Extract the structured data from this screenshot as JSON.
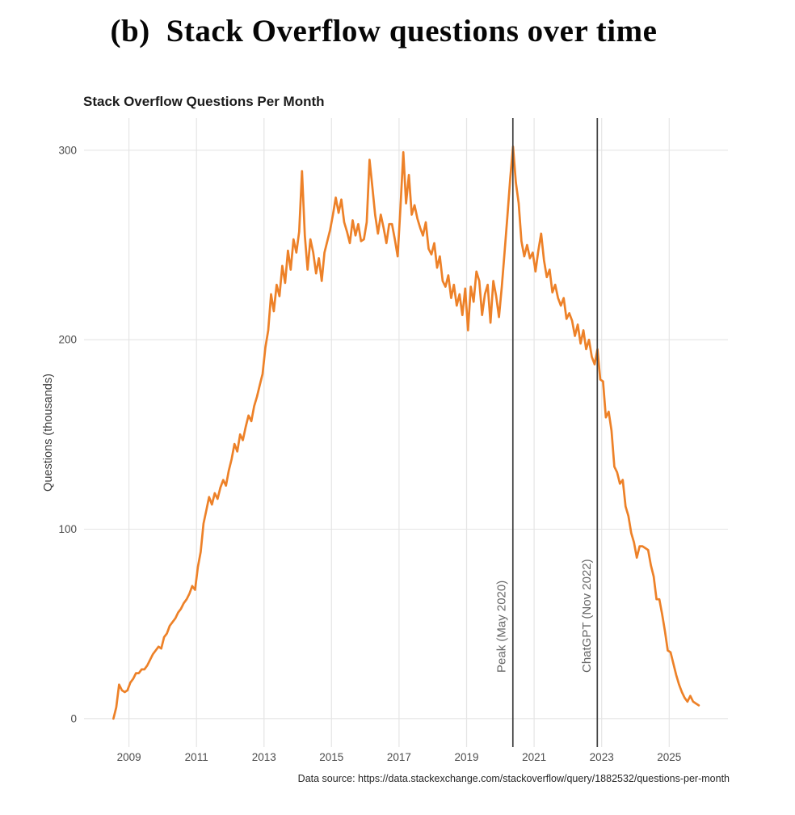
{
  "figure": {
    "title": "(b) Stack Overflow questions over time"
  },
  "chart": {
    "title": "Stack Overflow Questions Per Month",
    "y_axis_title": "Questions (thousands)",
    "caption": "Data source: https://data.stackexchange.com/stackoverflow/query/1882532/questions-per-month"
  },
  "chart_data": {
    "type": "line",
    "title": "Stack Overflow Questions Per Month",
    "xlabel": "",
    "ylabel": "Questions (thousands)",
    "caption": "Data source: https://data.stackexchange.com/stackoverflow/query/1882532/questions-per-month",
    "x_unit": "year",
    "frequency": "monthly",
    "x_start": 2008.5417,
    "x_ticks": [
      2009,
      2011,
      2013,
      2015,
      2017,
      2019,
      2021,
      2023,
      2025
    ],
    "y_ticks": [
      0,
      100,
      200,
      300
    ],
    "xlim": [
      2007.67,
      2026.74
    ],
    "ylim": [
      -15,
      317
    ],
    "grid": true,
    "legend": false,
    "line_color": "#ED8128",
    "grid_color": "#e5e5e5",
    "annotation_line_color": "#3f3f3f",
    "annotations": [
      {
        "label": "Peak (May 2020)",
        "x": 2020.37
      },
      {
        "label": "ChatGPT (Nov 2022)",
        "x": 2022.87
      }
    ],
    "series": [
      {
        "name": "Questions per month (thousands)",
        "values": [
          0,
          6,
          18,
          15,
          14,
          15,
          19,
          21,
          24,
          24,
          26,
          26,
          28,
          31,
          34,
          36,
          38,
          37,
          43,
          45,
          49,
          51,
          53,
          56,
          58,
          61,
          63,
          66,
          70,
          68,
          80,
          88,
          103,
          110,
          117,
          113,
          119,
          116,
          122,
          126,
          123,
          131,
          137,
          145,
          141,
          150,
          147,
          154,
          160,
          157,
          165,
          170,
          176,
          182,
          196,
          205,
          224,
          215,
          229,
          223,
          239,
          230,
          247,
          237,
          253,
          246,
          257,
          289,
          255,
          237,
          253,
          246,
          235,
          243,
          231,
          246,
          252,
          258,
          266,
          275,
          267,
          274,
          262,
          257,
          251,
          263,
          255,
          261,
          252,
          253,
          262,
          295,
          281,
          266,
          256,
          266,
          259,
          251,
          261,
          261,
          253,
          244,
          270,
          299,
          272,
          287,
          266,
          271,
          264,
          259,
          255,
          262,
          248,
          245,
          251,
          238,
          244,
          231,
          228,
          234,
          222,
          229,
          218,
          224,
          213,
          227,
          205,
          228,
          220,
          236,
          231,
          213,
          224,
          229,
          209,
          231,
          223,
          212,
          228,
          246,
          265,
          285,
          302,
          283,
          272,
          252,
          244,
          250,
          243,
          246,
          236,
          247,
          256,
          242,
          233,
          237,
          225,
          229,
          222,
          218,
          222,
          211,
          214,
          210,
          202,
          208,
          198,
          205,
          195,
          200,
          191,
          187,
          195,
          179,
          178,
          159,
          162,
          152,
          133,
          130,
          124,
          126,
          112,
          107,
          98,
          93,
          85,
          91,
          91,
          90,
          89,
          81,
          75,
          63,
          63,
          55,
          46,
          36,
          35,
          29,
          23,
          18,
          14,
          11,
          9,
          12,
          9,
          8,
          7
        ]
      }
    ]
  }
}
